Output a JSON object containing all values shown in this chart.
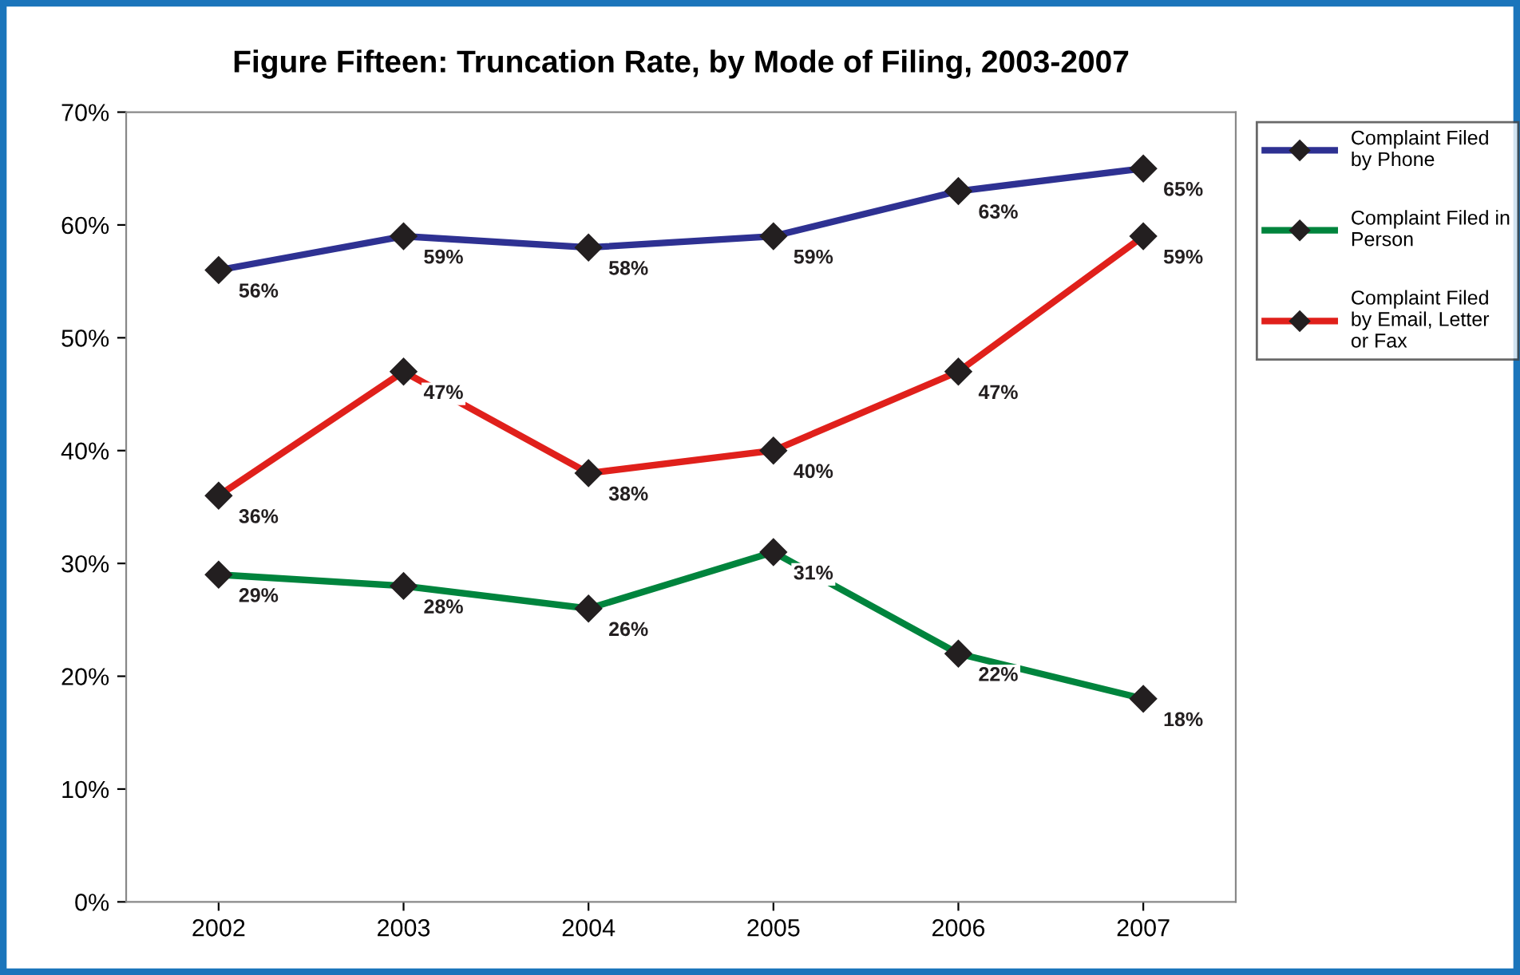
{
  "chart_data": {
    "type": "line",
    "title": "Figure Fifteen: Truncation Rate, by Mode of Filing, 2003-2007",
    "categories": [
      "2002",
      "2003",
      "2004",
      "2005",
      "2006",
      "2007"
    ],
    "series": [
      {
        "name": "Complaint Filed\nby Phone",
        "color": "#2e3192",
        "values": [
          56,
          59,
          58,
          59,
          63,
          65
        ],
        "value_labels": [
          "56%",
          "59%",
          "58%",
          "59%",
          "63%",
          "65%"
        ]
      },
      {
        "name": "Complaint Filed in\nPerson",
        "color": "#00843d",
        "values": [
          29,
          28,
          26,
          31,
          22,
          18
        ],
        "value_labels": [
          "29%",
          "28%",
          "26%",
          "31%",
          "22%",
          "18%"
        ]
      },
      {
        "name": "Complaint Filed\nby Email, Letter\nor Fax",
        "color": "#e0201b",
        "values": [
          36,
          47,
          38,
          40,
          47,
          59
        ],
        "value_labels": [
          "36%",
          "47%",
          "38%",
          "40%",
          "47%",
          "59%"
        ]
      }
    ],
    "ylim": [
      0,
      70
    ],
    "yticks": [
      {
        "value": 0,
        "label": "0%"
      },
      {
        "value": 10,
        "label": "10%"
      },
      {
        "value": 20,
        "label": "20%"
      },
      {
        "value": 30,
        "label": "30%"
      },
      {
        "value": 40,
        "label": "40%"
      },
      {
        "value": 50,
        "label": "50%"
      },
      {
        "value": 60,
        "label": "60%"
      },
      {
        "value": 70,
        "label": "70%"
      }
    ],
    "grid": false,
    "legend": "right",
    "marker": "diamond",
    "line_style": "solid"
  }
}
